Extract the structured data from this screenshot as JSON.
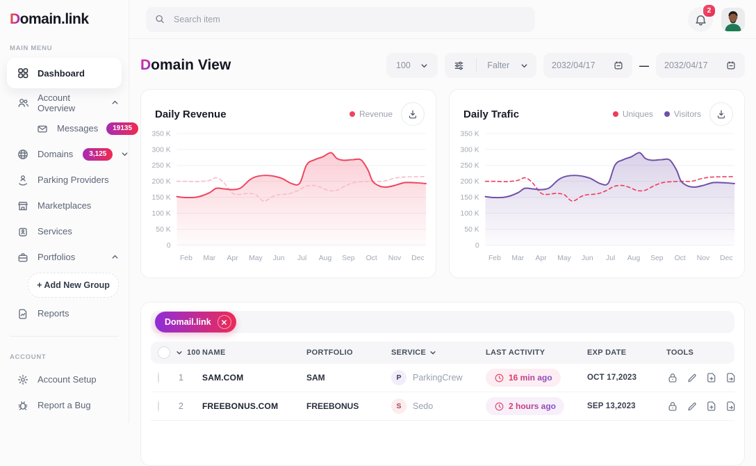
{
  "brand": {
    "logo_grad": "D",
    "logo_rest": "omain.link"
  },
  "topbar": {
    "search_placeholder": "Search item",
    "notification_count": "2"
  },
  "sidebar": {
    "sections": {
      "main": "MAIN MENU",
      "account": "ACCOUNT"
    },
    "menu": [
      {
        "label": "Dashboard",
        "active": true
      },
      {
        "label": "Account Overview",
        "chevron": "up"
      },
      {
        "label": "Messages",
        "badge": "19135",
        "child": true
      },
      {
        "label": "Domains",
        "badge": "3,125",
        "chevron": "down"
      },
      {
        "label": "Parking Providers"
      },
      {
        "label": "Marketplaces"
      },
      {
        "label": "Services"
      },
      {
        "label": "Portfolios",
        "chevron": "up"
      },
      {
        "label": "+  Add New Group",
        "type": "dashed-button"
      },
      {
        "label": "Reports"
      }
    ],
    "account_menu": [
      {
        "label": "Account Setup"
      },
      {
        "label": "Report a Bug"
      }
    ]
  },
  "page": {
    "title_grad": "D",
    "title_rest": "omain View"
  },
  "controls": {
    "page_size": "100",
    "filter_label": "Falter",
    "date_from": "2032/04/17",
    "date_to": "2032/04/17",
    "range_separator": "—"
  },
  "colors": {
    "brand_gradient": [
      "#F0592B",
      "#D12C8C",
      "#8B2FC9"
    ],
    "accent_gradient": [
      "#8F2CD8",
      "#EE2B54"
    ],
    "revenue_line": "#EF445F",
    "revenue_dashed": "#F7BCC8",
    "uniques_line": "#EE3B5E",
    "visitors_line": "#7050A8"
  },
  "chart_data": [
    {
      "type": "line",
      "title": "Daily Revenue",
      "legend": [
        {
          "name": "Revenue",
          "color": "#EF445F"
        }
      ],
      "categories": [
        "Feb",
        "Mar",
        "Apr",
        "May",
        "Jun",
        "Jul",
        "Aug",
        "Sep",
        "Oct",
        "Nov",
        "Dec"
      ],
      "ylabel": "thousands (K)",
      "ylim_k": [
        0,
        350
      ],
      "yticks_k": [
        350,
        300,
        250,
        200,
        150,
        100,
        50,
        0
      ],
      "grid": true,
      "legend_position": "top-right",
      "x_note": "x is month index, Feb=1 ... Dec=11; values in K",
      "series": [
        {
          "name": "Revenue",
          "style": "solid",
          "color": "#EF445F",
          "area_fill": true,
          "points": [
            [
              0.6,
              152
            ],
            [
              1,
              149
            ],
            [
              1.5,
              151
            ],
            [
              2,
              164
            ],
            [
              2.3,
              178
            ],
            [
              2.65,
              176
            ],
            [
              3,
              174
            ],
            [
              3.35,
              179
            ],
            [
              3.75,
              205
            ],
            [
              4.1,
              216
            ],
            [
              4.6,
              218
            ],
            [
              5.1,
              210
            ],
            [
              5.55,
              193
            ],
            [
              5.9,
              194
            ],
            [
              6.2,
              252
            ],
            [
              6.55,
              268
            ],
            [
              6.9,
              277
            ],
            [
              7.25,
              290
            ],
            [
              7.5,
              272
            ],
            [
              7.8,
              266
            ],
            [
              8.2,
              268
            ],
            [
              8.55,
              267
            ],
            [
              8.85,
              235
            ],
            [
              9.05,
              200
            ],
            [
              9.35,
              185
            ],
            [
              9.65,
              182
            ],
            [
              10,
              187
            ],
            [
              10.45,
              196
            ],
            [
              11,
              195
            ],
            [
              11.35,
              193
            ]
          ]
        },
        {
          "name": "Revenue comparison (unlabeled dashed)",
          "style": "dashed",
          "color": "#F7BCC8",
          "area_fill": false,
          "points": [
            [
              0.6,
              200
            ],
            [
              1,
              200
            ],
            [
              1.5,
              199
            ],
            [
              2,
              203
            ],
            [
              2.3,
              211
            ],
            [
              2.6,
              198
            ],
            [
              3,
              163
            ],
            [
              3.3,
              159
            ],
            [
              3.65,
              162
            ],
            [
              4,
              158
            ],
            [
              4.35,
              138
            ],
            [
              4.75,
              153
            ],
            [
              5,
              158
            ],
            [
              5.45,
              161
            ],
            [
              5.85,
              172
            ],
            [
              6.15,
              184
            ],
            [
              6.5,
              187
            ],
            [
              6.85,
              180
            ],
            [
              7.15,
              171
            ],
            [
              7.5,
              172
            ],
            [
              7.85,
              185
            ],
            [
              8.25,
              196
            ],
            [
              8.7,
              199
            ],
            [
              9.1,
              200
            ],
            [
              9.5,
              200
            ],
            [
              9.9,
              208
            ],
            [
              10.3,
              213
            ],
            [
              10.75,
              214
            ],
            [
              11.35,
              215
            ]
          ]
        }
      ]
    },
    {
      "type": "line",
      "title": "Daily Trafic",
      "legend": [
        {
          "name": "Uniques",
          "color": "#EE3B5E"
        },
        {
          "name": "Visitors",
          "color": "#7050A8"
        }
      ],
      "categories": [
        "Feb",
        "Mar",
        "Apr",
        "May",
        "Jun",
        "Jul",
        "Aug",
        "Sep",
        "Oct",
        "Nov",
        "Dec"
      ],
      "ylabel": "thousands (K)",
      "ylim_k": [
        0,
        350
      ],
      "yticks_k": [
        350,
        300,
        250,
        200,
        150,
        100,
        50,
        0
      ],
      "grid": true,
      "legend_position": "top-right",
      "x_note": "x is month index, Feb=1 ... Dec=11; values in K",
      "series": [
        {
          "name": "Visitors",
          "style": "solid",
          "color": "#7050A8",
          "area_fill": true,
          "points": [
            [
              0.6,
              152
            ],
            [
              1,
              149
            ],
            [
              1.5,
              151
            ],
            [
              2,
              164
            ],
            [
              2.3,
              178
            ],
            [
              2.65,
              176
            ],
            [
              3,
              174
            ],
            [
              3.35,
              179
            ],
            [
              3.75,
              205
            ],
            [
              4.1,
              216
            ],
            [
              4.6,
              218
            ],
            [
              5.1,
              210
            ],
            [
              5.55,
              193
            ],
            [
              5.9,
              194
            ],
            [
              6.2,
              252
            ],
            [
              6.55,
              268
            ],
            [
              6.9,
              277
            ],
            [
              7.25,
              290
            ],
            [
              7.5,
              272
            ],
            [
              7.8,
              266
            ],
            [
              8.2,
              268
            ],
            [
              8.55,
              267
            ],
            [
              8.85,
              235
            ],
            [
              9.05,
              200
            ],
            [
              9.35,
              185
            ],
            [
              9.65,
              182
            ],
            [
              10,
              187
            ],
            [
              10.45,
              196
            ],
            [
              11,
              195
            ],
            [
              11.35,
              193
            ]
          ]
        },
        {
          "name": "Uniques",
          "style": "dashed",
          "color": "#EE3B5E",
          "area_fill": false,
          "points": [
            [
              0.6,
              200
            ],
            [
              1,
              200
            ],
            [
              1.5,
              199
            ],
            [
              2,
              203
            ],
            [
              2.3,
              211
            ],
            [
              2.6,
              198
            ],
            [
              3,
              163
            ],
            [
              3.3,
              159
            ],
            [
              3.65,
              162
            ],
            [
              4,
              158
            ],
            [
              4.35,
              138
            ],
            [
              4.75,
              153
            ],
            [
              5,
              158
            ],
            [
              5.45,
              161
            ],
            [
              5.85,
              172
            ],
            [
              6.15,
              184
            ],
            [
              6.5,
              187
            ],
            [
              6.85,
              180
            ],
            [
              7.15,
              171
            ],
            [
              7.5,
              172
            ],
            [
              7.85,
              185
            ],
            [
              8.25,
              196
            ],
            [
              8.7,
              199
            ],
            [
              9.1,
              200
            ],
            [
              9.5,
              200
            ],
            [
              9.9,
              208
            ],
            [
              10.3,
              213
            ],
            [
              10.75,
              214
            ],
            [
              11.35,
              215
            ]
          ]
        }
      ]
    }
  ],
  "table": {
    "filter_chip": "Domail.link",
    "header_count": "100",
    "columns": {
      "name": "NAME",
      "portfolio": "PORTFOLIO",
      "service": "SERVICE",
      "activity": "LAST ACTIVITY",
      "exp": "EXP DATE",
      "tools": "TOOLS"
    },
    "rows": [
      {
        "num": "1",
        "name": "SAM.COM",
        "portfolio": "SAM",
        "service_initial": "P",
        "service": "ParkingCrew",
        "activity": "16 min ago",
        "exp": "OCT 17,2023",
        "activity_bg": "#FCEEF2",
        "avatar_bg": "#F1EDFB",
        "avatar_color": "#3E3A52"
      },
      {
        "num": "2",
        "name": "FREEBONUS.COM",
        "portfolio": "FREEBONUS",
        "service_initial": "S",
        "service": "Sedo",
        "activity": "2 hours ago",
        "exp": "SEP 13,2023",
        "activity_bg": "#F7F0FA",
        "avatar_bg": "#FBECEE",
        "avatar_color": "#A84356"
      }
    ]
  }
}
